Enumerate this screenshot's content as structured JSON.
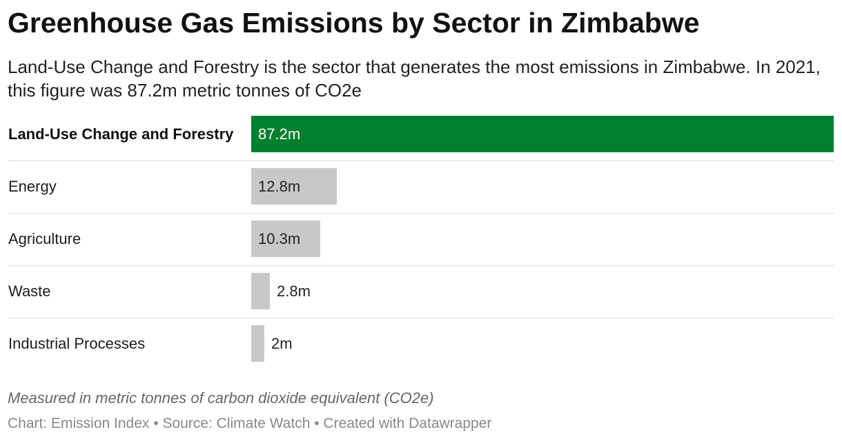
{
  "title": "Greenhouse Gas Emissions by Sector in Zimbabwe",
  "subtitle": "Land-Use Change and Forestry is the sector that generates the most emissions in Zimbabwe. In 2021, this figure was 87.2m metric tonnes of CO2e",
  "note": "Measured in metric tonnes of carbon dioxide equivalent (CO2e)",
  "footer": "Chart: Emission Index • Source: Climate Watch • Created with Datawrapper",
  "colors": {
    "highlight": "#00802e",
    "default": "#c8c8c8",
    "highlight_text": "#ffffff",
    "default_text": "#222222"
  },
  "chart_data": {
    "type": "bar",
    "orientation": "horizontal",
    "categories": [
      "Land-Use Change and Forestry",
      "Energy",
      "Agriculture",
      "Waste",
      "Industrial Processes"
    ],
    "values": [
      87.2,
      12.8,
      10.3,
      2.8,
      2
    ],
    "value_labels": [
      "87.2m",
      "12.8m",
      "10.3m",
      "2.8m",
      "2m"
    ],
    "unit": "m",
    "highlight_index": 0,
    "xlim": [
      0,
      87.2
    ],
    "grid": false,
    "legend": "none"
  }
}
